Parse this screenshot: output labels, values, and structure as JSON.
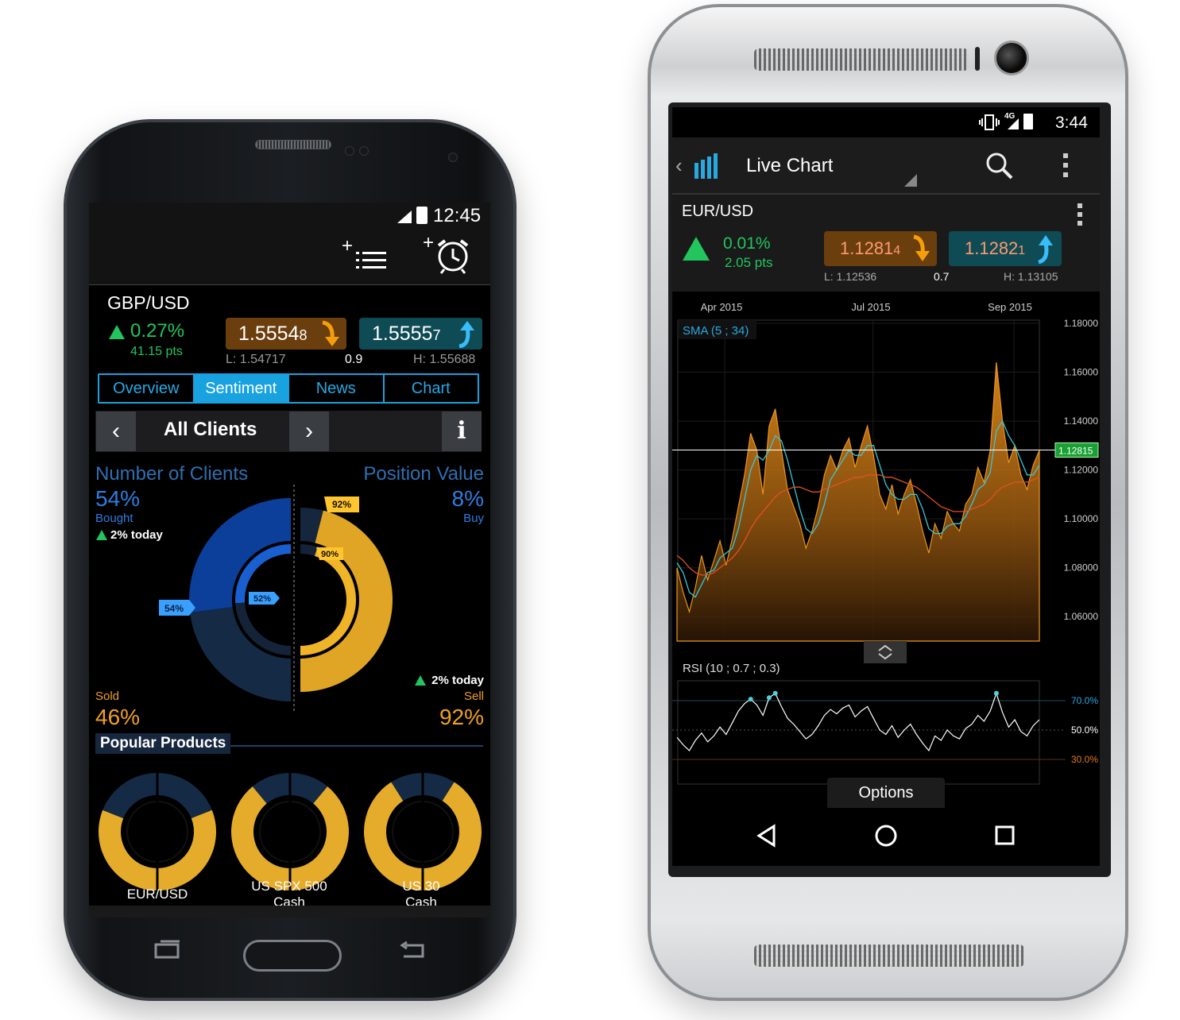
{
  "phone1": {
    "status": {
      "time": "12:45"
    },
    "toolbar": {
      "watchlist_icon": "add-list-icon",
      "alarm_icon": "add-alarm-icon"
    },
    "instrument": {
      "symbol": "GBP/USD",
      "change_pct": "0.27%",
      "change_pts": "41.15 pts",
      "sell_price_main": "1.5554",
      "sell_price_pip": "8",
      "buy_price_main": "1.5555",
      "buy_price_pip": "7",
      "low": "L: 1.54717",
      "spread": "0.9",
      "high": "H: 1.55688"
    },
    "tabs": [
      {
        "label": "Overview",
        "active": false
      },
      {
        "label": "Sentiment",
        "active": true
      },
      {
        "label": "News",
        "active": false
      },
      {
        "label": "Chart",
        "active": false
      }
    ],
    "segment": {
      "title": "All Clients",
      "prev": "‹",
      "next": "›",
      "info": "i"
    },
    "sentiment": {
      "clients_label": "Number of Clients",
      "position_label": "Position Value",
      "bought_pct": "54%",
      "bought_label": "Bought",
      "bought_today": "2% today",
      "buy_pct": "8%",
      "buy_label": "Buy",
      "sold_label": "Sold",
      "sold_pct": "46%",
      "sell_today": "2% today",
      "sell_label": "Sell",
      "sell_pct": "92%",
      "tag_outer_left": "54%",
      "tag_inner_left": "52%",
      "tag_outer_right": "92%",
      "tag_inner_right": "90%",
      "outer_clients_bought": 0.54,
      "inner_clients_bought": 0.52,
      "outer_position_sell": 0.92,
      "inner_position_sell": 0.9
    },
    "popular": {
      "title": "Popular Products",
      "items": [
        {
          "label1": "EUR/USD",
          "label2": "",
          "sell": 0.62
        },
        {
          "label1": "US SPX 500",
          "label2": "Cash",
          "sell": 0.78
        },
        {
          "label1": "US 30",
          "label2": "Cash",
          "sell": 0.82
        }
      ]
    },
    "colors": {
      "accent": "#19a2e0",
      "gold": "#f0b429",
      "navy": "#0b2f6e",
      "up": "#22c55e"
    }
  },
  "phone2": {
    "status": {
      "network": "4G",
      "time": "3:44"
    },
    "appbar": {
      "title": "Live Chart"
    },
    "instrument": {
      "symbol": "EUR/USD",
      "change_pct": "0.01%",
      "change_pts": "2.05 pts",
      "sell_price_main": "1.1281",
      "sell_price_pip": "4",
      "buy_price_main": "1.1282",
      "buy_price_pip": "1",
      "low": "L: 1.12536",
      "spread": "0.7",
      "high": "H: 1.13105"
    },
    "chart": {
      "x_ticks": [
        "Apr 2015",
        "Jul 2015",
        "Sep 2015"
      ],
      "y_ticks": [
        "1.18000",
        "1.16000",
        "1.14000",
        "1.12000",
        "1.10000",
        "1.08000",
        "1.06000"
      ],
      "current_price": "1.12815",
      "sma_label": "SMA (5 ; 34)",
      "rsi_label": "RSI (10 ; 0.7 ; 0.3)",
      "rsi_ticks": [
        "70.0%",
        "50.0%",
        "30.0%"
      ],
      "options_label": "Options"
    }
  },
  "chart_data": {
    "type": "area",
    "title": "",
    "x_ticks": [
      "Apr 2015",
      "Jul 2015",
      "Sep 2015"
    ],
    "ylim": [
      1.05,
      1.18
    ],
    "series": [
      {
        "values": [
          1.08,
          1.07,
          1.062,
          1.072,
          1.085,
          1.075,
          1.083,
          1.091,
          1.081,
          1.092,
          1.105,
          1.118,
          1.135,
          1.128,
          1.11,
          1.138,
          1.145,
          1.128,
          1.112,
          1.105,
          1.098,
          1.088,
          1.095,
          1.105,
          1.118,
          1.126,
          1.12,
          1.128,
          1.133,
          1.121,
          1.13,
          1.138,
          1.126,
          1.11,
          1.104,
          1.114,
          1.102,
          1.11,
          1.116,
          1.106,
          1.095,
          1.086,
          1.098,
          1.092,
          1.103,
          1.098,
          1.095,
          1.106,
          1.11,
          1.121,
          1.115,
          1.128,
          1.164,
          1.14,
          1.123,
          1.13,
          1.118,
          1.112,
          1.122,
          1.128
        ]
      },
      {
        "values": [
          1.082,
          1.078,
          1.07,
          1.068,
          1.073,
          1.078,
          1.079,
          1.084,
          1.086,
          1.088,
          1.096,
          1.108,
          1.12,
          1.126,
          1.124,
          1.128,
          1.134,
          1.132,
          1.124,
          1.114,
          1.104,
          1.096,
          1.094,
          1.098,
          1.106,
          1.116,
          1.12,
          1.124,
          1.128,
          1.126,
          1.126,
          1.13,
          1.13,
          1.122,
          1.114,
          1.11,
          1.108,
          1.108,
          1.11,
          1.11,
          1.104,
          1.096,
          1.094,
          1.094,
          1.097,
          1.098,
          1.098,
          1.101,
          1.106,
          1.112,
          1.114,
          1.119,
          1.136,
          1.14,
          1.134,
          1.13,
          1.124,
          1.118,
          1.118,
          1.122
        ]
      },
      {
        "values": [
          1.085,
          1.083,
          1.08,
          1.078,
          1.077,
          1.077,
          1.078,
          1.08,
          1.082,
          1.084,
          1.087,
          1.091,
          1.096,
          1.1,
          1.103,
          1.106,
          1.109,
          1.111,
          1.112,
          1.113,
          1.113,
          1.112,
          1.111,
          1.111,
          1.112,
          1.113,
          1.114,
          1.115,
          1.116,
          1.117,
          1.117,
          1.118,
          1.118,
          1.118,
          1.117,
          1.117,
          1.116,
          1.115,
          1.114,
          1.113,
          1.111,
          1.109,
          1.107,
          1.105,
          1.104,
          1.103,
          1.103,
          1.103,
          1.104,
          1.105,
          1.106,
          1.108,
          1.111,
          1.113,
          1.114,
          1.115,
          1.115,
          1.115,
          1.116,
          1.117
        ]
      }
    ],
    "rsi": [
      45,
      40,
      36,
      43,
      48,
      42,
      46,
      52,
      47,
      55,
      63,
      68,
      71,
      67,
      60,
      72,
      75,
      66,
      58,
      54,
      49,
      44,
      47,
      53,
      60,
      64,
      61,
      65,
      67,
      59,
      63,
      66,
      58,
      50,
      47,
      53,
      45,
      50,
      54,
      47,
      41,
      36,
      46,
      43,
      50,
      46,
      44,
      51,
      54,
      60,
      56,
      63,
      75,
      62,
      52,
      57,
      49,
      46,
      53,
      57
    ]
  }
}
